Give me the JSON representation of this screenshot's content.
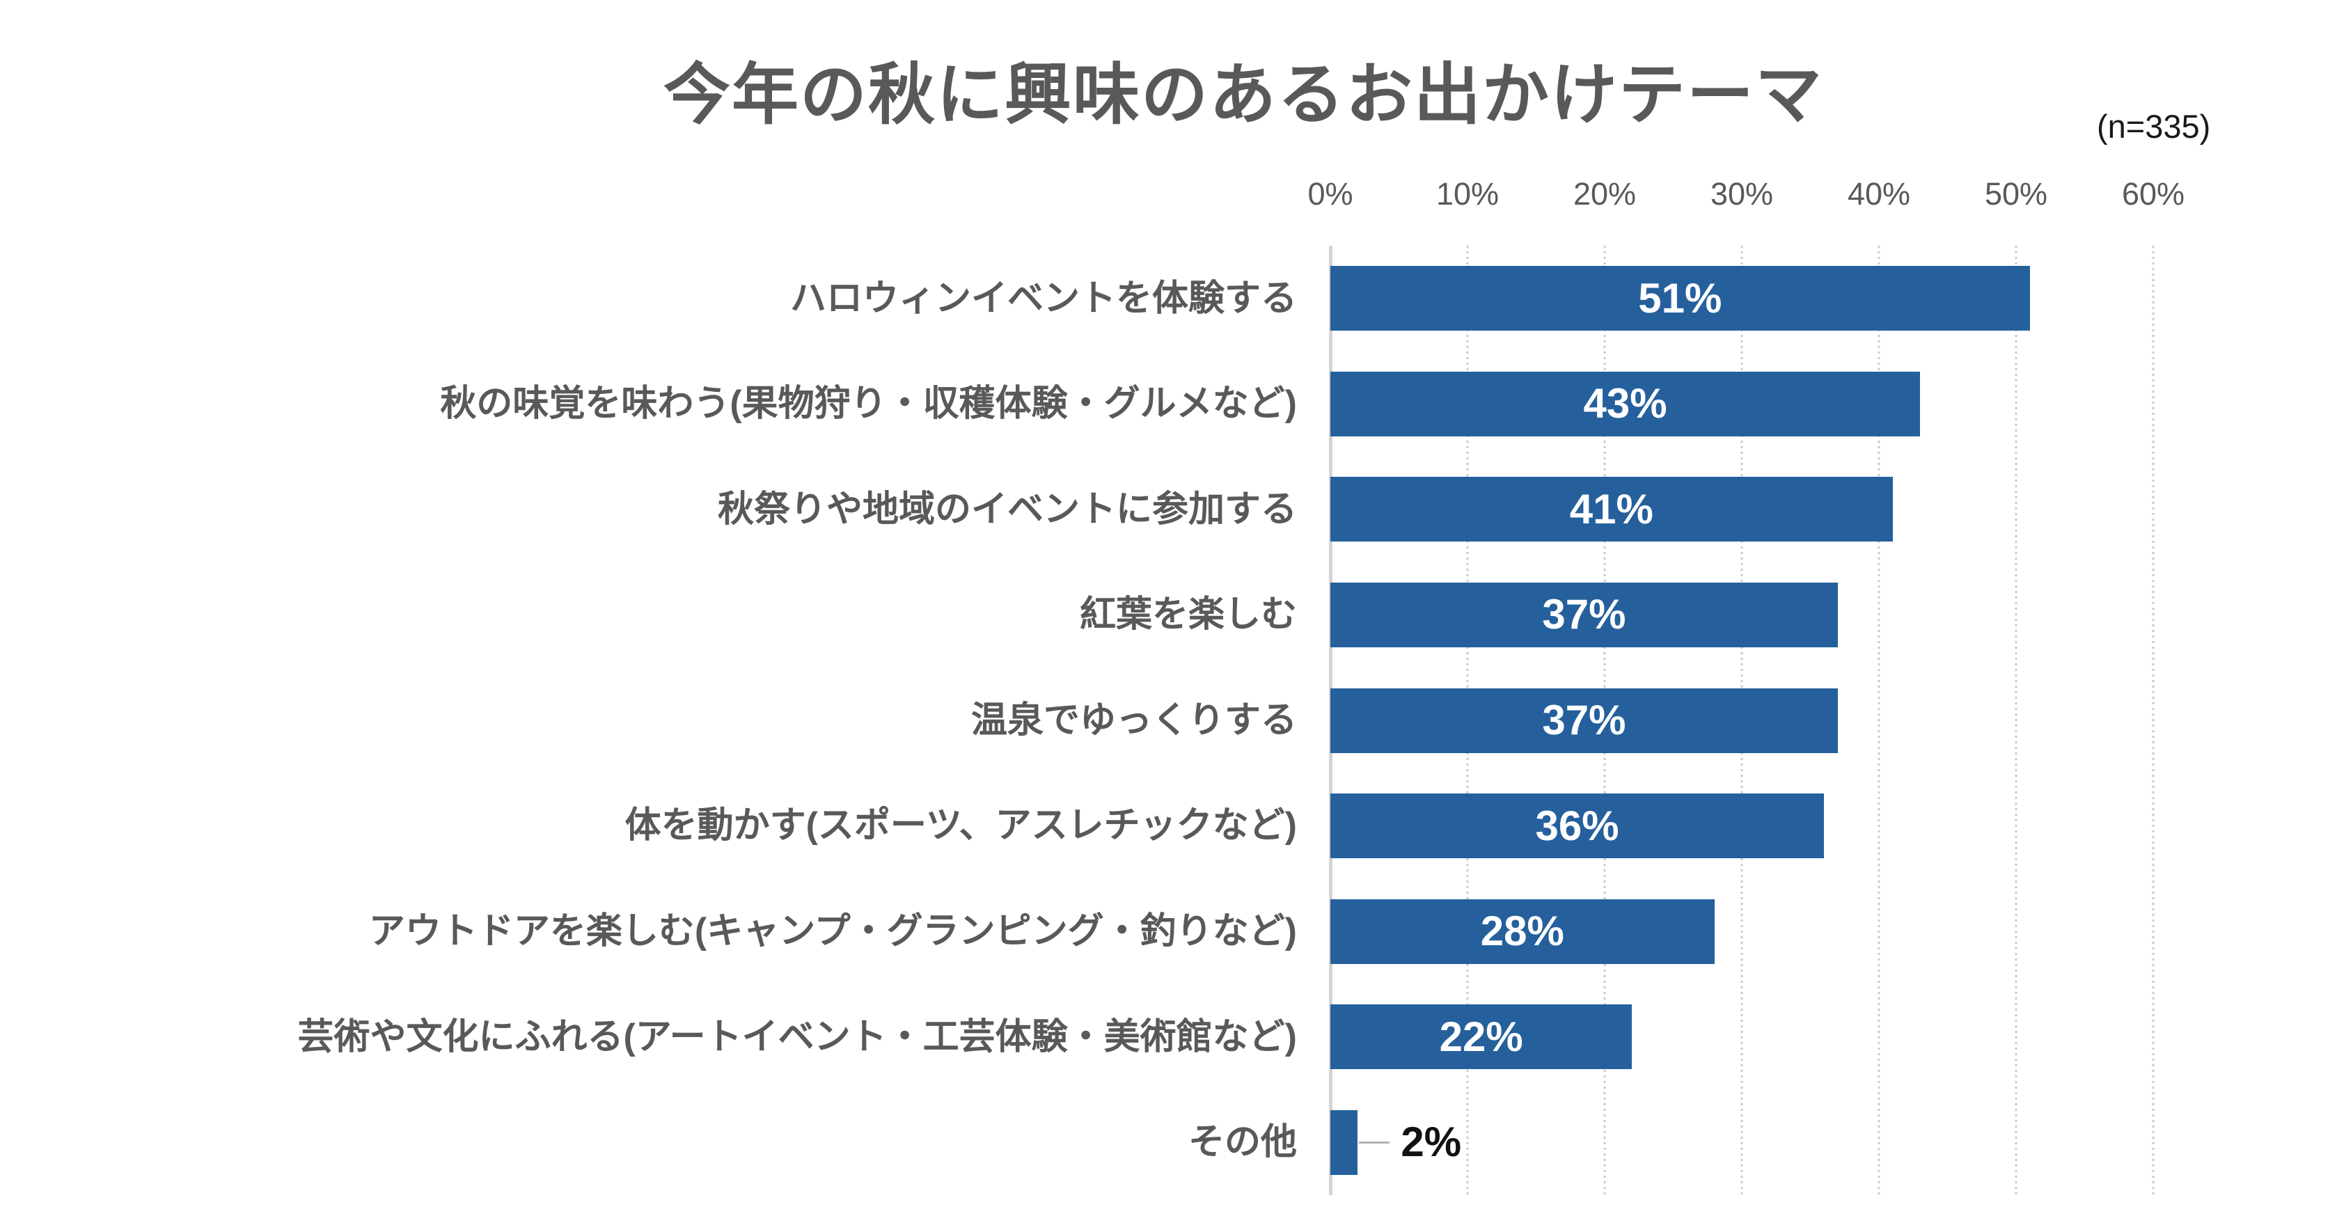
{
  "chart_data": {
    "type": "bar",
    "orientation": "horizontal",
    "title": "今年の秋に興味のあるお出かけテーマ",
    "sample_size_note": "(n=335)",
    "xlabel": "",
    "ylabel": "",
    "xlim": [
      0,
      60
    ],
    "x_ticks": [
      "0%",
      "10%",
      "20%",
      "30%",
      "40%",
      "50%",
      "60%"
    ],
    "grid": "vertical-dotted",
    "legend_position": "none",
    "bar_color": "#25609D",
    "title_color": "#595959",
    "category_label_color": "#595959",
    "tick_label_color": "#595959",
    "value_label_color_inside": "#FFFFFF",
    "value_label_color_outside": "#111111",
    "leader_line_color": "#B3B3B3",
    "rows": [
      {
        "label": "ハロウィンイベントを体験する",
        "value": 51,
        "value_label": "51%"
      },
      {
        "label": "秋の味覚を味わう(果物狩り・収穫体験・グルメなど)",
        "value": 43,
        "value_label": "43%"
      },
      {
        "label": "秋祭りや地域のイベントに参加する",
        "value": 41,
        "value_label": "41%"
      },
      {
        "label": "紅葉を楽しむ",
        "value": 37,
        "value_label": "37%"
      },
      {
        "label": "温泉でゆっくりする",
        "value": 37,
        "value_label": "37%"
      },
      {
        "label": "体を動かす(スポーツ、アスレチックなど)",
        "value": 36,
        "value_label": "36%"
      },
      {
        "label": "アウトドアを楽しむ(キャンプ・グランピング・釣りなど)",
        "value": 28,
        "value_label": "28%"
      },
      {
        "label": "芸術や文化にふれる(アートイベント・工芸体験・美術館など)",
        "value": 22,
        "value_label": "22%"
      },
      {
        "label": "その他",
        "value": 2,
        "value_label": "2%",
        "value_outside": true
      }
    ]
  }
}
